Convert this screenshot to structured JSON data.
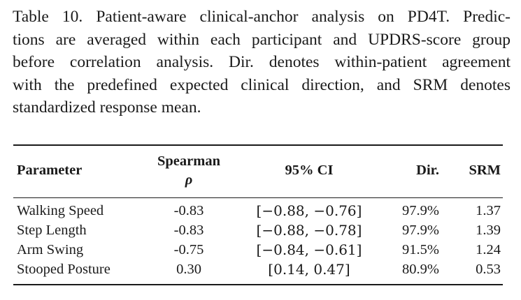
{
  "caption": {
    "lines": [
      "Table 10. Patient-aware clinical-anchor analysis on PD4T. Predic-",
      "tions are averaged within each participant and UPDRS-score group",
      "before correlation analysis. Dir. denotes within-patient agreement",
      "with the predefined expected clinical direction, and SRM denotes",
      "standardized response mean."
    ]
  },
  "table": {
    "headers": {
      "parameter": "Parameter",
      "spearman_line1": "Spearman",
      "spearman_line2": "ρ",
      "ci": "95% CI",
      "dir": "Dir.",
      "srm": "SRM"
    },
    "rows": [
      {
        "parameter": "Walking Speed",
        "spearman": "-0.83",
        "ci": "[−0.88, −0.76]",
        "dir": "97.9%",
        "srm": "1.37"
      },
      {
        "parameter": "Step Length",
        "spearman": "-0.83",
        "ci": "[−0.88, −0.78]",
        "dir": "97.9%",
        "srm": "1.39"
      },
      {
        "parameter": "Arm Swing",
        "spearman": "-0.75",
        "ci": "[−0.84, −0.61]",
        "dir": "91.5%",
        "srm": "1.24"
      },
      {
        "parameter": "Stooped Posture",
        "spearman": "0.30",
        "ci": "[0.14, 0.47]",
        "dir": "80.9%",
        "srm": "0.53"
      }
    ]
  }
}
